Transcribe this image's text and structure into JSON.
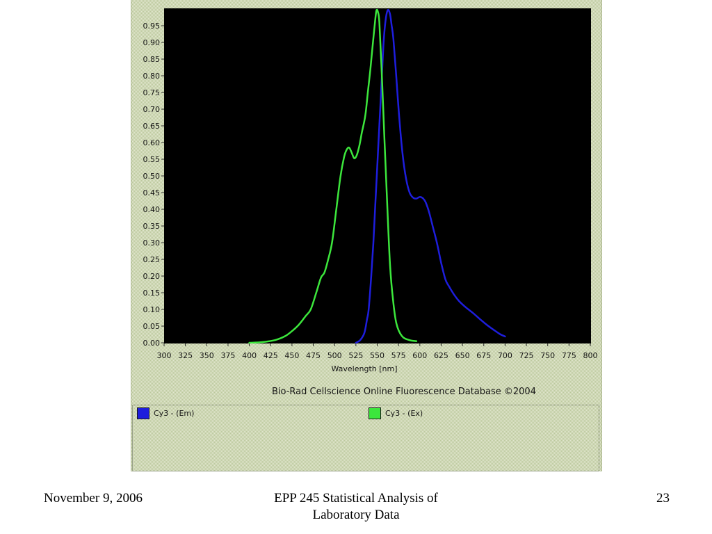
{
  "slide": {
    "footer_left": "November 9, 2006",
    "footer_center_line1": "EPP 245 Statistical Analysis of",
    "footer_center_line2": "Laboratory Data",
    "page_number": "23"
  },
  "chart_data": {
    "type": "line",
    "xlabel": "Wavelength [nm]",
    "caption": "Bio-Rad Cellscience Online Fluorescence Database ©2004",
    "xlim": [
      300,
      800
    ],
    "ylim": [
      0,
      1
    ],
    "x_ticks": [
      "300",
      "325",
      "350",
      "375",
      "400",
      "425",
      "450",
      "475",
      "500",
      "525",
      "550",
      "575",
      "600",
      "625",
      "650",
      "675",
      "700",
      "725",
      "750",
      "775",
      "800"
    ],
    "y_ticks": [
      "0.00",
      "0.05",
      "0.10",
      "0.15",
      "0.20",
      "0.25",
      "0.30",
      "0.35",
      "0.40",
      "0.45",
      "0.50",
      "0.55",
      "0.60",
      "0.65",
      "0.70",
      "0.75",
      "0.80",
      "0.85",
      "0.90",
      "0.95"
    ],
    "grid": false,
    "legend_position": "bottom",
    "plot_background": "#000000",
    "series": [
      {
        "name": "Cy3 - (Em)",
        "color": "#1e1edc",
        "points": [
          [
            525,
            0
          ],
          [
            530,
            0.008
          ],
          [
            535,
            0.03
          ],
          [
            538,
            0.07
          ],
          [
            540,
            0.1
          ],
          [
            543,
            0.2
          ],
          [
            545.5,
            0.3
          ],
          [
            547.5,
            0.4
          ],
          [
            549.5,
            0.5
          ],
          [
            551.5,
            0.6
          ],
          [
            553.5,
            0.7
          ],
          [
            555.5,
            0.8
          ],
          [
            557.5,
            0.9
          ],
          [
            560,
            0.97
          ],
          [
            562.5,
            0.997
          ],
          [
            565,
            0.985
          ],
          [
            567,
            0.95
          ],
          [
            569,
            0.91
          ],
          [
            572,
            0.81
          ],
          [
            576,
            0.67
          ],
          [
            580,
            0.56
          ],
          [
            584,
            0.49
          ],
          [
            588,
            0.45
          ],
          [
            592,
            0.435
          ],
          [
            596,
            0.432
          ],
          [
            600,
            0.437
          ],
          [
            604,
            0.432
          ],
          [
            607,
            0.42
          ],
          [
            611,
            0.39
          ],
          [
            615,
            0.35
          ],
          [
            620,
            0.3
          ],
          [
            625,
            0.24
          ],
          [
            630,
            0.19
          ],
          [
            634,
            0.17
          ],
          [
            640,
            0.145
          ],
          [
            646,
            0.125
          ],
          [
            654,
            0.106
          ],
          [
            662,
            0.09
          ],
          [
            670,
            0.072
          ],
          [
            678,
            0.055
          ],
          [
            686,
            0.04
          ],
          [
            694,
            0.026
          ],
          [
            700,
            0.019
          ]
        ]
      },
      {
        "name": "Cy3 - (Ex)",
        "color": "#3ce63c",
        "points": [
          [
            400,
            0
          ],
          [
            415,
            0.002
          ],
          [
            430,
            0.008
          ],
          [
            442,
            0.02
          ],
          [
            450,
            0.035
          ],
          [
            458,
            0.054
          ],
          [
            466,
            0.08
          ],
          [
            472,
            0.1
          ],
          [
            478.5,
            0.15
          ],
          [
            484,
            0.195
          ],
          [
            488,
            0.21
          ],
          [
            492,
            0.245
          ],
          [
            497,
            0.3
          ],
          [
            502,
            0.4
          ],
          [
            507,
            0.5
          ],
          [
            511,
            0.555
          ],
          [
            514,
            0.578
          ],
          [
            517,
            0.585
          ],
          [
            520,
            0.57
          ],
          [
            523,
            0.553
          ],
          [
            526,
            0.562
          ],
          [
            529,
            0.59
          ],
          [
            532,
            0.63
          ],
          [
            536,
            0.68
          ],
          [
            539,
            0.75
          ],
          [
            542,
            0.82
          ],
          [
            545,
            0.9
          ],
          [
            547,
            0.95
          ],
          [
            549,
            0.995
          ],
          [
            551,
            0.99
          ],
          [
            552.5,
            0.96
          ],
          [
            555,
            0.83
          ],
          [
            558.5,
            0.61
          ],
          [
            562,
            0.4
          ],
          [
            565,
            0.235
          ],
          [
            568.5,
            0.13
          ],
          [
            572.5,
            0.058
          ],
          [
            579,
            0.02
          ],
          [
            588,
            0.008
          ],
          [
            596,
            0.005
          ]
        ]
      }
    ]
  }
}
